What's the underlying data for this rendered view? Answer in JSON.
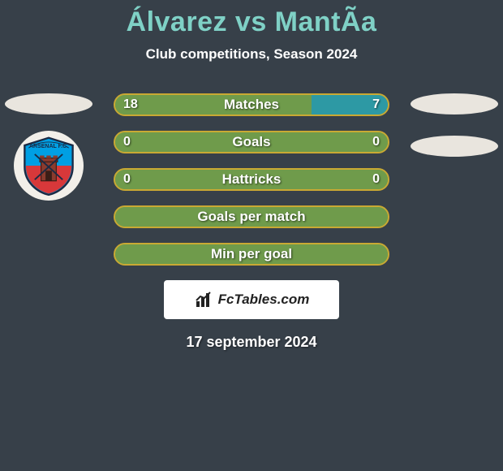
{
  "title": {
    "text": "Álvarez vs MantÃ­a",
    "fontsize": 34,
    "color": "#7fd1c6"
  },
  "subtitle": {
    "text": "Club competitions, Season 2024",
    "fontsize": 17,
    "color": "#ffffff"
  },
  "flag_ellipse": {
    "color": "#e9e5de"
  },
  "crest": {
    "bg": "#f2efe9",
    "shield_top": "#009fe3",
    "shield_bottom": "#d8383a",
    "tower": "#8a3b2e",
    "outline": "#1a2a44",
    "text": "ARSENAL F.C."
  },
  "bars": {
    "label_fontsize": 17,
    "value_fontsize": 16,
    "border_color": "#c9a933",
    "fill_left_color": "#6f9b4b",
    "fill_right_color": "#2d99a4",
    "empty_fill_color": "#6f9b4b",
    "rows": [
      {
        "label": "Matches",
        "left": "18",
        "right": "7",
        "left_pct": 72,
        "right_pct": 28,
        "show_values": true
      },
      {
        "label": "Goals",
        "left": "0",
        "right": "0",
        "left_pct": 100,
        "right_pct": 0,
        "show_values": true
      },
      {
        "label": "Hattricks",
        "left": "0",
        "right": "0",
        "left_pct": 100,
        "right_pct": 0,
        "show_values": true
      },
      {
        "label": "Goals per match",
        "left": "",
        "right": "",
        "left_pct": 100,
        "right_pct": 0,
        "show_values": false
      },
      {
        "label": "Min per goal",
        "left": "",
        "right": "",
        "left_pct": 100,
        "right_pct": 0,
        "show_values": false
      }
    ]
  },
  "brand": {
    "text": "FcTables.com",
    "fontsize": 17,
    "icon_color": "#222"
  },
  "date": {
    "text": "17 september 2024",
    "fontsize": 18,
    "color": "#ffffff"
  }
}
